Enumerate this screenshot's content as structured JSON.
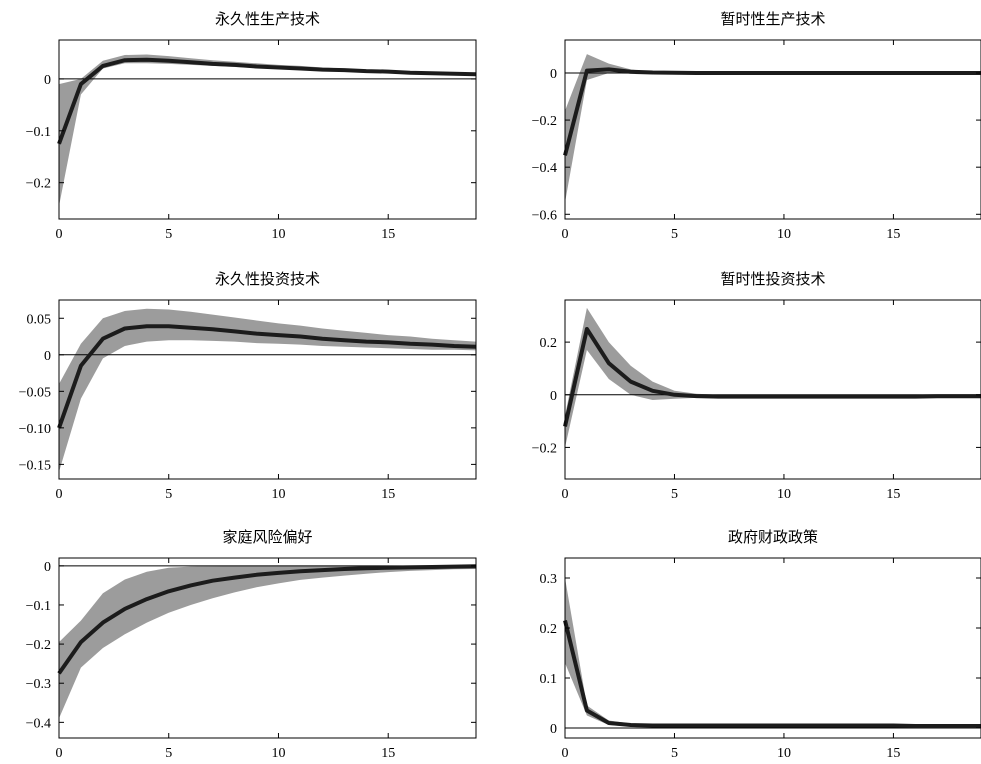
{
  "chart_data": [
    {
      "type": "line",
      "title": "永久性生产技术",
      "xlim": [
        0,
        19
      ],
      "ylim": [
        -0.27,
        0.075
      ],
      "xticks": [
        0,
        5,
        10,
        15
      ],
      "xtick_labels": [
        "0",
        "5",
        "10",
        "15"
      ],
      "yticks": [
        0,
        -0.1,
        -0.2
      ],
      "ytick_labels": [
        "0",
        "−0.1",
        "−0.2"
      ],
      "grid": false,
      "x": [
        0,
        1,
        2,
        3,
        4,
        5,
        6,
        7,
        8,
        9,
        10,
        11,
        12,
        13,
        14,
        15,
        16,
        17,
        18,
        19
      ],
      "series": [
        {
          "role": "median",
          "values": [
            -0.125,
            -0.01,
            0.025,
            0.036,
            0.037,
            0.035,
            0.032,
            0.029,
            0.027,
            0.024,
            0.022,
            0.02,
            0.018,
            0.017,
            0.015,
            0.014,
            0.012,
            0.011,
            0.01,
            0.009
          ]
        },
        {
          "role": "band_upper",
          "values": [
            -0.01,
            0.0,
            0.035,
            0.046,
            0.047,
            0.044,
            0.04,
            0.036,
            0.033,
            0.03,
            0.027,
            0.025,
            0.022,
            0.02,
            0.018,
            0.016,
            0.014,
            0.013,
            0.012,
            0.011
          ]
        },
        {
          "role": "band_lower",
          "values": [
            -0.245,
            -0.03,
            0.02,
            0.03,
            0.03,
            0.029,
            0.027,
            0.025,
            0.023,
            0.021,
            0.019,
            0.017,
            0.016,
            0.014,
            0.013,
            0.012,
            0.011,
            0.01,
            0.009,
            0.008
          ]
        }
      ]
    },
    {
      "type": "line",
      "title": "暂时性生产技术",
      "xlim": [
        0,
        19
      ],
      "ylim": [
        -0.62,
        0.14
      ],
      "xticks": [
        0,
        5,
        10,
        15
      ],
      "xtick_labels": [
        "0",
        "5",
        "10",
        "15"
      ],
      "yticks": [
        0,
        -0.2,
        -0.4,
        -0.6
      ],
      "ytick_labels": [
        "0",
        "−0.2",
        "−0.4",
        "−0.6"
      ],
      "grid": false,
      "x": [
        0,
        1,
        2,
        3,
        4,
        5,
        6,
        7,
        8,
        9,
        10,
        11,
        12,
        13,
        14,
        15,
        16,
        17,
        18,
        19
      ],
      "series": [
        {
          "role": "median",
          "values": [
            -0.35,
            0.01,
            0.015,
            0.005,
            0.002,
            0.001,
            0,
            0,
            0,
            0,
            0,
            0,
            0,
            0,
            0,
            0,
            0,
            0,
            0,
            0
          ]
        },
        {
          "role": "band_upper",
          "values": [
            -0.16,
            0.08,
            0.04,
            0.015,
            0.006,
            0.003,
            0.002,
            0.001,
            0.001,
            0.001,
            0.001,
            0.001,
            0.001,
            0.001,
            0.001,
            0.001,
            0.001,
            0.001,
            0.001,
            0.001
          ]
        },
        {
          "role": "band_lower",
          "values": [
            -0.55,
            -0.03,
            0.0,
            -0.004,
            -0.003,
            -0.002,
            -0.001,
            -0.001,
            -0.001,
            -0.001,
            -0.001,
            -0.001,
            -0.001,
            -0.001,
            -0.001,
            -0.001,
            -0.001,
            -0.001,
            -0.001,
            -0.001
          ]
        }
      ]
    },
    {
      "type": "line",
      "title": "永久性投资技术",
      "xlim": [
        0,
        19
      ],
      "ylim": [
        -0.17,
        0.075
      ],
      "xticks": [
        0,
        5,
        10,
        15
      ],
      "xtick_labels": [
        "0",
        "5",
        "10",
        "15"
      ],
      "yticks": [
        0.05,
        0,
        -0.05,
        -0.1,
        -0.15
      ],
      "ytick_labels": [
        "0.05",
        "0",
        "−0.05",
        "−0.10",
        "−0.15"
      ],
      "grid": false,
      "x": [
        0,
        1,
        2,
        3,
        4,
        5,
        6,
        7,
        8,
        9,
        10,
        11,
        12,
        13,
        14,
        15,
        16,
        17,
        18,
        19
      ],
      "series": [
        {
          "role": "median",
          "values": [
            -0.1,
            -0.015,
            0.022,
            0.036,
            0.039,
            0.039,
            0.037,
            0.035,
            0.032,
            0.029,
            0.027,
            0.025,
            0.022,
            0.02,
            0.018,
            0.017,
            0.015,
            0.014,
            0.012,
            0.011
          ]
        },
        {
          "role": "band_upper",
          "values": [
            -0.04,
            0.015,
            0.05,
            0.06,
            0.063,
            0.062,
            0.059,
            0.055,
            0.051,
            0.047,
            0.043,
            0.04,
            0.036,
            0.033,
            0.03,
            0.027,
            0.025,
            0.022,
            0.02,
            0.018
          ]
        },
        {
          "role": "band_lower",
          "values": [
            -0.16,
            -0.06,
            -0.005,
            0.012,
            0.018,
            0.02,
            0.02,
            0.019,
            0.018,
            0.016,
            0.015,
            0.014,
            0.012,
            0.011,
            0.01,
            0.009,
            0.008,
            0.007,
            0.007,
            0.006
          ]
        }
      ]
    },
    {
      "type": "line",
      "title": "暂时性投资技术",
      "xlim": [
        0,
        19
      ],
      "ylim": [
        -0.32,
        0.36
      ],
      "xticks": [
        0,
        5,
        10,
        15
      ],
      "xtick_labels": [
        "0",
        "5",
        "10",
        "15"
      ],
      "yticks": [
        0.2,
        0,
        -0.2
      ],
      "ytick_labels": [
        "0.2",
        "0",
        "−0.2"
      ],
      "grid": false,
      "x": [
        0,
        1,
        2,
        3,
        4,
        5,
        6,
        7,
        8,
        9,
        10,
        11,
        12,
        13,
        14,
        15,
        16,
        17,
        18,
        19
      ],
      "series": [
        {
          "role": "median",
          "values": [
            -0.12,
            0.25,
            0.12,
            0.05,
            0.015,
            0.0,
            -0.005,
            -0.007,
            -0.007,
            -0.007,
            -0.007,
            -0.007,
            -0.007,
            -0.007,
            -0.007,
            -0.007,
            -0.007,
            -0.006,
            -0.006,
            -0.006
          ]
        },
        {
          "role": "band_upper",
          "values": [
            -0.08,
            0.33,
            0.2,
            0.11,
            0.05,
            0.015,
            0.004,
            0.0,
            -0.002,
            -0.003,
            -0.003,
            -0.003,
            -0.003,
            -0.003,
            -0.003,
            -0.003,
            -0.002,
            -0.002,
            -0.002,
            -0.002
          ]
        },
        {
          "role": "band_lower",
          "values": [
            -0.2,
            0.17,
            0.06,
            0.0,
            -0.02,
            -0.015,
            -0.012,
            -0.012,
            -0.012,
            -0.012,
            -0.012,
            -0.012,
            -0.012,
            -0.011,
            -0.011,
            -0.011,
            -0.011,
            -0.01,
            -0.01,
            -0.01
          ]
        }
      ]
    },
    {
      "type": "line",
      "title": "家庭风险偏好",
      "xlim": [
        0,
        19
      ],
      "ylim": [
        -0.44,
        0.02
      ],
      "xticks": [
        0,
        5,
        10,
        15
      ],
      "xtick_labels": [
        "0",
        "5",
        "10",
        "15"
      ],
      "yticks": [
        0,
        -0.1,
        -0.2,
        -0.3,
        -0.4
      ],
      "ytick_labels": [
        "0",
        "−0.1",
        "−0.2",
        "−0.3",
        "−0.4"
      ],
      "grid": false,
      "x": [
        0,
        1,
        2,
        3,
        4,
        5,
        6,
        7,
        8,
        9,
        10,
        11,
        12,
        13,
        14,
        15,
        16,
        17,
        18,
        19
      ],
      "series": [
        {
          "role": "median",
          "values": [
            -0.275,
            -0.195,
            -0.145,
            -0.11,
            -0.085,
            -0.065,
            -0.05,
            -0.038,
            -0.03,
            -0.023,
            -0.018,
            -0.014,
            -0.011,
            -0.008,
            -0.006,
            -0.005,
            -0.004,
            -0.003,
            -0.002,
            -0.001
          ]
        },
        {
          "role": "band_upper",
          "values": [
            -0.195,
            -0.14,
            -0.07,
            -0.035,
            -0.015,
            -0.005,
            -0.002,
            -0.001,
            0,
            0,
            0,
            0,
            0,
            0,
            0,
            0,
            0,
            0,
            0,
            0
          ]
        },
        {
          "role": "band_lower",
          "values": [
            -0.39,
            -0.26,
            -0.21,
            -0.175,
            -0.145,
            -0.12,
            -0.1,
            -0.083,
            -0.068,
            -0.055,
            -0.045,
            -0.036,
            -0.03,
            -0.025,
            -0.02,
            -0.016,
            -0.013,
            -0.011,
            -0.009,
            -0.008
          ]
        }
      ]
    },
    {
      "type": "line",
      "title": "政府财政政策",
      "xlim": [
        0,
        19
      ],
      "ylim": [
        -0.02,
        0.34
      ],
      "xticks": [
        0,
        5,
        10,
        15
      ],
      "xtick_labels": [
        "0",
        "5",
        "10",
        "15"
      ],
      "yticks": [
        0.3,
        0.2,
        0.1,
        0
      ],
      "ytick_labels": [
        "0.3",
        "0.2",
        "0.1",
        "0"
      ],
      "grid": false,
      "x": [
        0,
        1,
        2,
        3,
        4,
        5,
        6,
        7,
        8,
        9,
        10,
        11,
        12,
        13,
        14,
        15,
        16,
        17,
        18,
        19
      ],
      "series": [
        {
          "role": "median",
          "values": [
            0.215,
            0.035,
            0.01,
            0.006,
            0.005,
            0.005,
            0.005,
            0.005,
            0.005,
            0.005,
            0.005,
            0.005,
            0.005,
            0.005,
            0.005,
            0.005,
            0.004,
            0.004,
            0.004,
            0.004
          ]
        },
        {
          "role": "band_upper",
          "values": [
            0.3,
            0.045,
            0.015,
            0.009,
            0.008,
            0.008,
            0.008,
            0.008,
            0.008,
            0.008,
            0.008,
            0.008,
            0.007,
            0.007,
            0.007,
            0.007,
            0.006,
            0.006,
            0.006,
            0.006
          ]
        },
        {
          "role": "band_lower",
          "values": [
            0.13,
            0.025,
            0.006,
            0.003,
            0.003,
            0.003,
            0.003,
            0.003,
            0.003,
            0.003,
            0.003,
            0.003,
            0.003,
            0.003,
            0.003,
            0.002,
            0.002,
            0.002,
            0.002,
            0.002
          ]
        }
      ]
    }
  ],
  "colors": {
    "band": "#9c9c9c",
    "line": "#1c1c1c",
    "zero_line": "#000000",
    "axes": "#000000"
  }
}
